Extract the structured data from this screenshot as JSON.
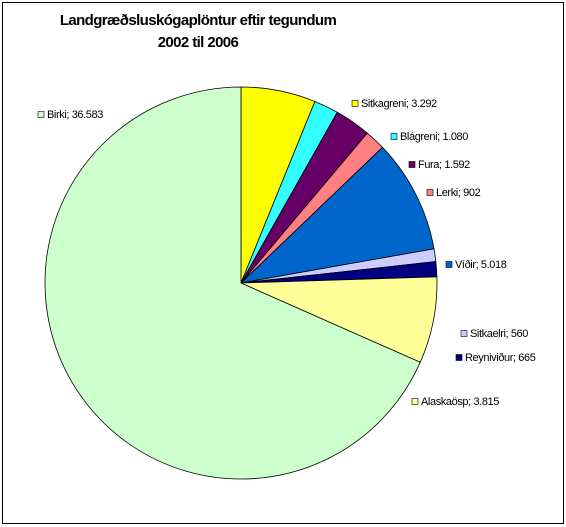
{
  "chart_data": {
    "type": "pie",
    "title": "Landgræðsluskógaplöntur eftir tegundum",
    "subtitle": "2002 til 2006",
    "values": [
      3292,
      1080,
      1592,
      902,
      5018,
      560,
      665,
      3815,
      36583
    ],
    "value_labels": [
      "Sitkagreni; 3.292",
      "Blágreni; 1.080",
      "Fura; 1.592",
      "Lerki; 902",
      "Víðir; 5.018",
      "Sitkaelri; 560",
      "Reyniviður; 665",
      "Alaskaösp; 3.815",
      "Birki; 36.583"
    ],
    "colors": [
      "#ffff00",
      "#33ffff",
      "#660066",
      "#ff8080",
      "#0066cc",
      "#ccccff",
      "#000080",
      "#ffff99",
      "#ccffcc"
    ]
  }
}
